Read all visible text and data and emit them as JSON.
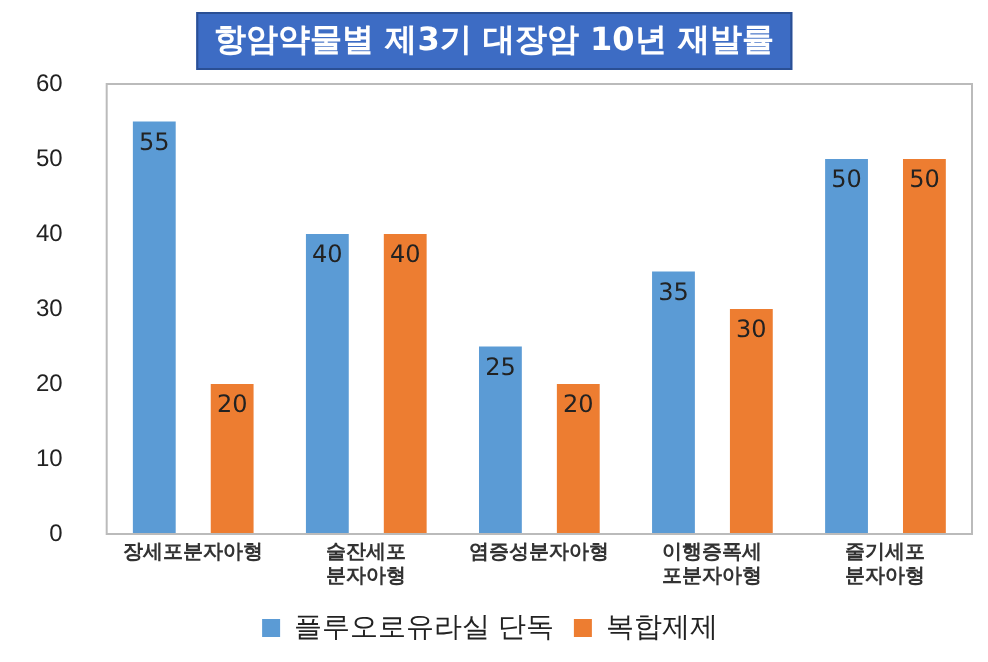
{
  "chart_data": {
    "type": "bar",
    "title": "항암약물별 제3기 대장암 10년 재발률",
    "categories": [
      "장세포분자아형",
      "술잔세포분자아형",
      "염증성분자아형",
      "이행증폭세포분자아형",
      "줄기세포분자아형"
    ],
    "series": [
      {
        "name": "플루오로유라실 단독",
        "color": "#5b9bd5",
        "values": [
          55,
          40,
          25,
          35,
          50
        ]
      },
      {
        "name": "복합제제",
        "color": "#ed7d31",
        "values": [
          20,
          40,
          20,
          30,
          50
        ]
      }
    ],
    "ylim": [
      0,
      60
    ],
    "yticks": [
      0,
      10,
      20,
      30,
      40,
      50,
      60
    ],
    "grid": false,
    "legend": "bottom",
    "data_labels": true
  }
}
